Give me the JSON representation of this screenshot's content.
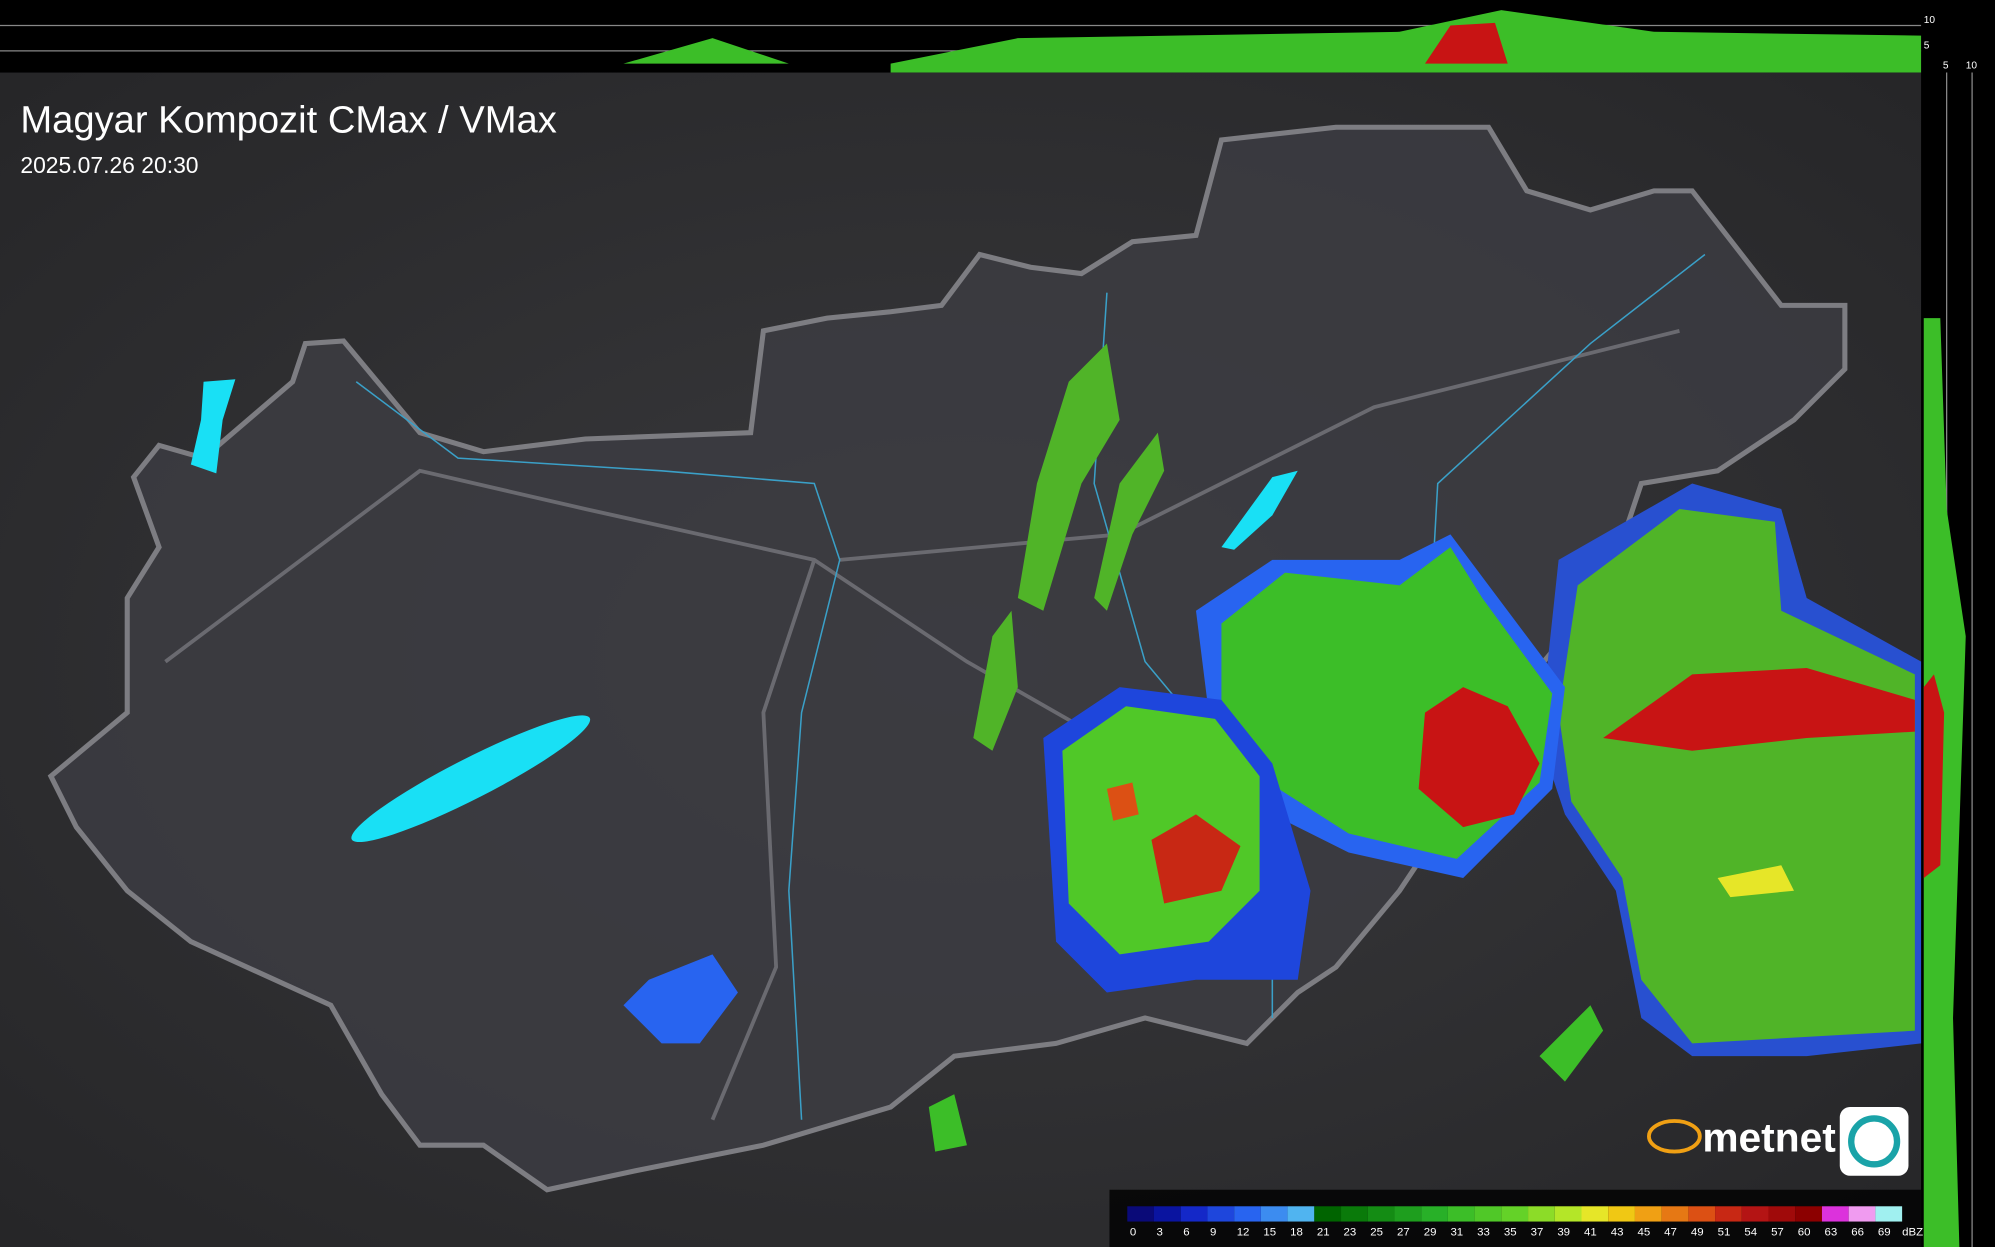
{
  "header": {
    "title": "Magyar Kompozit CMax / VMax",
    "timestamp": "2025.07.26 20:30"
  },
  "profile_axes": {
    "top": [
      "10",
      "5"
    ],
    "side": [
      "5",
      "10"
    ]
  },
  "logo": {
    "text": "metnet"
  },
  "legend": {
    "labels": [
      "0",
      "3",
      "6",
      "9",
      "12",
      "15",
      "18",
      "21",
      "23",
      "25",
      "27",
      "29",
      "31",
      "33",
      "35",
      "37",
      "39",
      "41",
      "43",
      "45",
      "47",
      "49",
      "51",
      "54",
      "57",
      "60",
      "63",
      "66",
      "69"
    ],
    "colors": [
      "#0a0a78",
      "#0a14a0",
      "#1428c8",
      "#1e46dc",
      "#2864f0",
      "#3c8cf0",
      "#50b4f0",
      "#006400",
      "#0a7a0a",
      "#148c14",
      "#1e9e1e",
      "#28b028",
      "#3cbe28",
      "#50c828",
      "#64d228",
      "#8cdc28",
      "#b4e628",
      "#e6e628",
      "#f0c814",
      "#f0a014",
      "#e67814",
      "#dc5014",
      "#c82814",
      "#b41414",
      "#a00a0a",
      "#8c0000",
      "#dc32dc",
      "#f09bf0",
      "#a0f0f0"
    ],
    "unit": "dBZ"
  }
}
